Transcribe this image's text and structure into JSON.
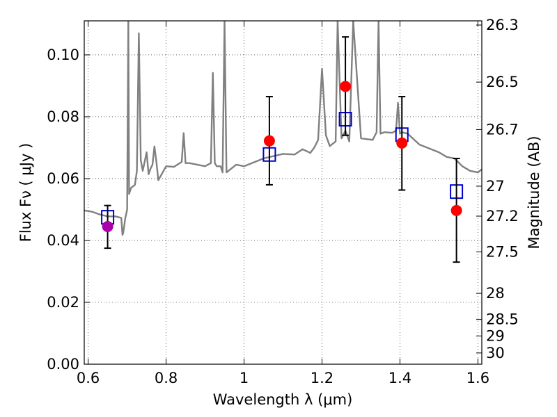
{
  "chart_data": {
    "type": "scatter",
    "xlabel": "Wavelength  λ (μm)",
    "ylabel": "Flux  Fν  ( μJy )",
    "y2label": "Magnitude (AB)",
    "xlim": [
      0.59,
      1.61
    ],
    "ylim": [
      0.0,
      0.111
    ],
    "grid": true,
    "x_ticks": [
      0.6,
      0.8,
      1.0,
      1.2,
      1.4,
      1.6
    ],
    "x_tick_labels": [
      "0.6",
      "0.8",
      "1",
      "1.2",
      "1.4",
      "1.6"
    ],
    "y_ticks": [
      0.0,
      0.02,
      0.04,
      0.06,
      0.08,
      0.1
    ],
    "y_tick_labels": [
      "0.00",
      "0.02",
      "0.04",
      "0.06",
      "0.08",
      "0.10"
    ],
    "mag_ticks": [
      26.3,
      26.5,
      26.7,
      27,
      27.2,
      27.5,
      28,
      28.5,
      29,
      30
    ],
    "mag_tick_labels": [
      "26.3",
      "26.5",
      "26.7",
      "27",
      "27.2",
      "27.5",
      "28",
      "28.5",
      "29",
      "30"
    ],
    "series": [
      {
        "marker": "line",
        "color": "#808080",
        "x": [
          0.59,
          0.61,
          0.63,
          0.65,
          0.67,
          0.685,
          0.688,
          0.69,
          0.695,
          0.7,
          0.703,
          0.705,
          0.71,
          0.72,
          0.725,
          0.73,
          0.735,
          0.74,
          0.75,
          0.755,
          0.76,
          0.765,
          0.77,
          0.775,
          0.78,
          0.8,
          0.82,
          0.84,
          0.845,
          0.85,
          0.86,
          0.88,
          0.9,
          0.915,
          0.92,
          0.925,
          0.93,
          0.94,
          0.945,
          0.95,
          0.955,
          0.96,
          0.98,
          1.0,
          1.05,
          1.1,
          1.13,
          1.15,
          1.17,
          1.18,
          1.19,
          1.2,
          1.21,
          1.22,
          1.235,
          1.24,
          1.25,
          1.26,
          1.27,
          1.28,
          1.3,
          1.33,
          1.34,
          1.345,
          1.35,
          1.36,
          1.38,
          1.39,
          1.395,
          1.4,
          1.405,
          1.42,
          1.45,
          1.5,
          1.52,
          1.54,
          1.56,
          1.58,
          1.6,
          1.61
        ],
        "y": [
          0.0497,
          0.0493,
          0.0484,
          0.0478,
          0.0478,
          0.0473,
          0.0418,
          0.0425,
          0.047,
          0.05,
          0.111,
          0.055,
          0.057,
          0.058,
          0.0625,
          0.107,
          0.066,
          0.0625,
          0.0685,
          0.0614,
          0.0632,
          0.0645,
          0.0704,
          0.0655,
          0.0595,
          0.064,
          0.0638,
          0.0654,
          0.0747,
          0.065,
          0.065,
          0.0645,
          0.064,
          0.065,
          0.0942,
          0.065,
          0.064,
          0.064,
          0.062,
          0.111,
          0.062,
          0.0625,
          0.0645,
          0.064,
          0.0665,
          0.068,
          0.0678,
          0.0695,
          0.0683,
          0.07,
          0.0725,
          0.0955,
          0.074,
          0.0705,
          0.072,
          0.111,
          0.073,
          0.0755,
          0.072,
          0.111,
          0.073,
          0.0725,
          0.075,
          0.111,
          0.0745,
          0.075,
          0.0748,
          0.0755,
          0.0845,
          0.0745,
          0.075,
          0.0745,
          0.071,
          0.0685,
          0.067,
          0.0665,
          0.064,
          0.0625,
          0.062,
          0.063
        ]
      },
      {
        "marker": "square",
        "color": "#0000cc",
        "x": [
          0.65,
          1.065,
          1.26,
          1.405,
          1.545
        ],
        "y": [
          0.0475,
          0.0678,
          0.0792,
          0.0742,
          0.0558
        ]
      },
      {
        "marker": "circle",
        "color": "#ff0000",
        "x": [
          1.065,
          1.26,
          1.405,
          1.545
        ],
        "y": [
          0.0722,
          0.0898,
          0.0715,
          0.0497
        ],
        "yerr_low": [
          0.058,
          0.074,
          0.0563,
          0.033
        ],
        "yerr_high": [
          0.0865,
          0.1058,
          0.0865,
          0.0665
        ]
      },
      {
        "marker": "circle",
        "color": "#aa00aa",
        "x": [
          0.65
        ],
        "y": [
          0.0445
        ],
        "yerr_low": [
          0.0375
        ],
        "yerr_high": [
          0.0513
        ]
      }
    ]
  }
}
